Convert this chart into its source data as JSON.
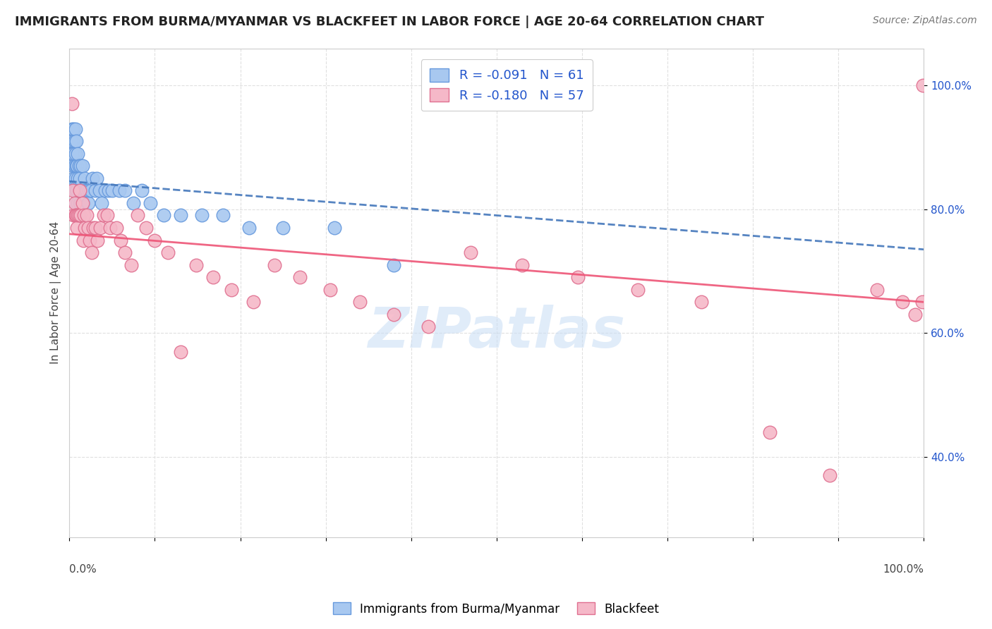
{
  "title": "IMMIGRANTS FROM BURMA/MYANMAR VS BLACKFEET IN LABOR FORCE | AGE 20-64 CORRELATION CHART",
  "source": "Source: ZipAtlas.com",
  "ylabel": "In Labor Force | Age 20-64",
  "xmin": 0.0,
  "xmax": 1.0,
  "ymin": 0.27,
  "ymax": 1.06,
  "yticks": [
    0.4,
    0.6,
    0.8,
    1.0
  ],
  "ytick_labels": [
    "40.0%",
    "60.0%",
    "80.0%",
    "100.0%"
  ],
  "grid_color": "#e0e0e0",
  "watermark": "ZIPatlas",
  "blue_R": -0.091,
  "blue_N": 61,
  "pink_R": -0.18,
  "pink_N": 57,
  "blue_color": "#a8c8f0",
  "blue_edge": "#6699dd",
  "pink_color": "#f5b8c8",
  "pink_edge": "#e07090",
  "blue_line_color": "#4477bb",
  "pink_line_color": "#ee5577",
  "blue_line_start_y": 0.845,
  "blue_line_end_y": 0.735,
  "pink_line_start_y": 0.76,
  "pink_line_end_y": 0.65,
  "blue_scatter_x": [
    0.002,
    0.003,
    0.003,
    0.004,
    0.004,
    0.005,
    0.005,
    0.005,
    0.006,
    0.006,
    0.006,
    0.007,
    0.007,
    0.007,
    0.007,
    0.008,
    0.008,
    0.008,
    0.009,
    0.009,
    0.01,
    0.01,
    0.01,
    0.011,
    0.011,
    0.012,
    0.012,
    0.013,
    0.013,
    0.014,
    0.015,
    0.015,
    0.016,
    0.017,
    0.018,
    0.019,
    0.02,
    0.022,
    0.023,
    0.025,
    0.027,
    0.03,
    0.032,
    0.035,
    0.038,
    0.042,
    0.046,
    0.05,
    0.058,
    0.065,
    0.075,
    0.085,
    0.095,
    0.11,
    0.13,
    0.155,
    0.18,
    0.21,
    0.25,
    0.31,
    0.38
  ],
  "blue_scatter_y": [
    0.91,
    0.93,
    0.89,
    0.87,
    0.91,
    0.85,
    0.89,
    0.93,
    0.83,
    0.87,
    0.91,
    0.81,
    0.85,
    0.89,
    0.93,
    0.83,
    0.87,
    0.91,
    0.83,
    0.87,
    0.81,
    0.85,
    0.89,
    0.83,
    0.87,
    0.81,
    0.85,
    0.81,
    0.87,
    0.83,
    0.83,
    0.87,
    0.81,
    0.83,
    0.85,
    0.83,
    0.83,
    0.81,
    0.83,
    0.83,
    0.85,
    0.83,
    0.85,
    0.83,
    0.81,
    0.83,
    0.83,
    0.83,
    0.83,
    0.83,
    0.81,
    0.83,
    0.81,
    0.79,
    0.79,
    0.79,
    0.79,
    0.77,
    0.77,
    0.77,
    0.71
  ],
  "pink_scatter_x": [
    0.003,
    0.004,
    0.005,
    0.006,
    0.007,
    0.008,
    0.009,
    0.01,
    0.011,
    0.012,
    0.013,
    0.015,
    0.016,
    0.017,
    0.018,
    0.02,
    0.022,
    0.024,
    0.026,
    0.028,
    0.03,
    0.033,
    0.036,
    0.04,
    0.044,
    0.048,
    0.055,
    0.06,
    0.065,
    0.072,
    0.08,
    0.09,
    0.1,
    0.115,
    0.13,
    0.148,
    0.168,
    0.19,
    0.215,
    0.24,
    0.27,
    0.305,
    0.34,
    0.38,
    0.42,
    0.47,
    0.53,
    0.595,
    0.665,
    0.74,
    0.82,
    0.89,
    0.945,
    0.975,
    0.99,
    0.998,
    0.999
  ],
  "pink_scatter_y": [
    0.97,
    0.83,
    0.79,
    0.81,
    0.79,
    0.79,
    0.77,
    0.79,
    0.79,
    0.83,
    0.79,
    0.81,
    0.75,
    0.79,
    0.77,
    0.79,
    0.77,
    0.75,
    0.73,
    0.77,
    0.77,
    0.75,
    0.77,
    0.79,
    0.79,
    0.77,
    0.77,
    0.75,
    0.73,
    0.71,
    0.79,
    0.77,
    0.75,
    0.73,
    0.57,
    0.71,
    0.69,
    0.67,
    0.65,
    0.71,
    0.69,
    0.67,
    0.65,
    0.63,
    0.61,
    0.73,
    0.71,
    0.69,
    0.67,
    0.65,
    0.44,
    0.37,
    0.67,
    0.65,
    0.63,
    0.65,
    1.0
  ],
  "legend_label_blue": "Immigrants from Burma/Myanmar",
  "legend_label_pink": "Blackfeet",
  "legend_R_color": "#2255cc",
  "title_fontsize": 13,
  "source_fontsize": 10,
  "axis_label_fontsize": 11,
  "tick_fontsize": 11,
  "legend_fontsize": 13
}
